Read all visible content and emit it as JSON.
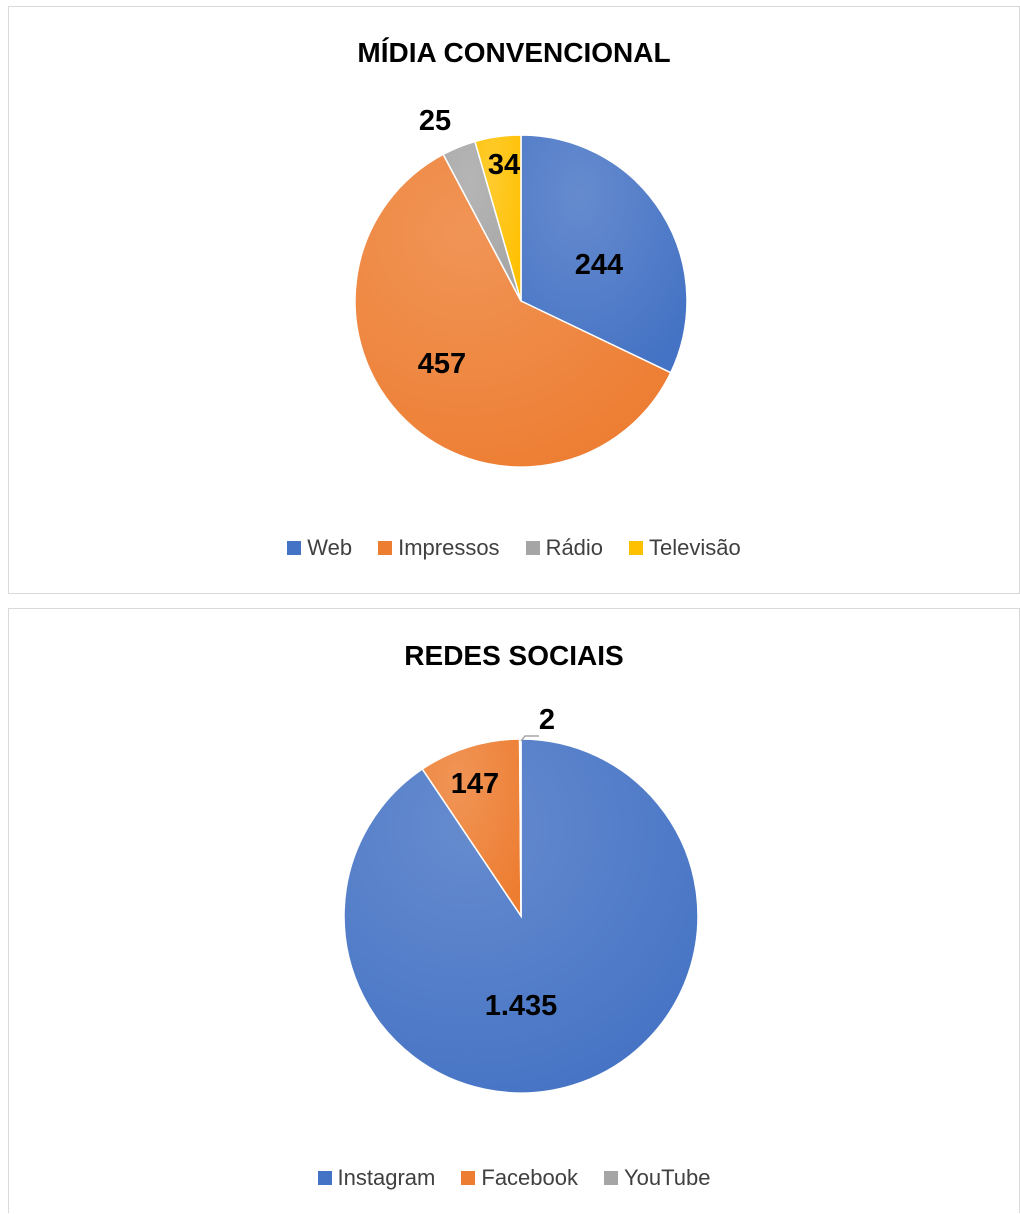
{
  "chart_data": [
    {
      "type": "pie",
      "title": "MÍDIA CONVENCIONAL",
      "categories": [
        "Web",
        "Impressos",
        "Rádio",
        "Televisão"
      ],
      "values": [
        244,
        457,
        25,
        34
      ],
      "value_labels": [
        "244",
        "457",
        "25",
        "34"
      ],
      "colors": [
        "#4472C4",
        "#ED7D31",
        "#A5A5A5",
        "#FFC000"
      ],
      "legend": "bottom"
    },
    {
      "type": "pie",
      "title": "REDES SOCIAIS",
      "categories": [
        "Instagram",
        "Facebook",
        "YouTube"
      ],
      "values": [
        1435,
        147,
        2
      ],
      "value_labels": [
        "1.435",
        "147",
        "2"
      ],
      "colors": [
        "#4472C4",
        "#ED7D31",
        "#A5A5A5"
      ],
      "legend": "bottom"
    }
  ]
}
